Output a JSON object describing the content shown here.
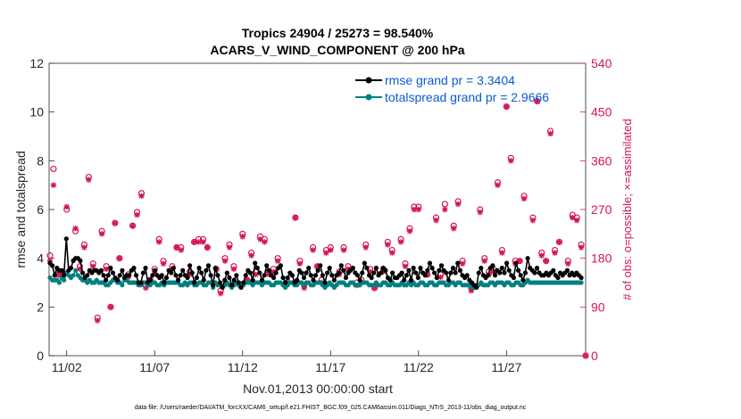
{
  "chart_data": {
    "type": "line",
    "title": "Tropics 24904 / 25273 = 98.540%",
    "subtitle": "ACARS_V_WIND_COMPONENT @ 200 hPa",
    "xlabel": "Nov.01,2013 00:00:00 start",
    "ylabel": "rmse and totalspread",
    "ylabel_right": "# of obs: o=possible; ×=assimilated",
    "footnote": "data file: /Users/raeder/DAI/ATM_forcXX/CAM6_setup/f.e21.FHIST_BGC.f09_025.CAM6assim.011/Diags_NTrS_2013-11/obs_diag_output.nc",
    "xlim": [
      0.5,
      31.0
    ],
    "ylim": [
      0,
      12
    ],
    "ylim_right": [
      0,
      540
    ],
    "x_ticks": [
      1.5,
      6.5,
      11.5,
      16.5,
      21.5,
      26.5
    ],
    "x_tick_labels": [
      "11/02",
      "11/07",
      "11/12",
      "11/17",
      "11/22",
      "11/27"
    ],
    "y_ticks": [
      0,
      2,
      4,
      6,
      8,
      10,
      12
    ],
    "y_tick_labels": [
      "0",
      "2",
      "4",
      "6",
      "8",
      "10",
      "12"
    ],
    "y_ticks_right": [
      0,
      90,
      180,
      270,
      360,
      450,
      540
    ],
    "y_tick_labels_right": [
      "0",
      "90",
      "180",
      "270",
      "360",
      "450",
      "540"
    ],
    "legend": {
      "placement": "top-right",
      "entries": [
        "rmse grand pr = 3.3404",
        "totalspread grand pr = 2.9666"
      ]
    },
    "colors": {
      "rmse": "#000000",
      "spread": "#008080",
      "obs": "#d4145a",
      "legend_text": "#0a5ad4"
    },
    "series": [
      {
        "name": "rmse",
        "marker": "filled-circle",
        "values": [
          3.8,
          3.7,
          3.3,
          3.6,
          3.5,
          3.5,
          3.3,
          4.8,
          3.5,
          3.6,
          3.9,
          4.0,
          4.0,
          3.9,
          3.4,
          3.2,
          3.3,
          3.5,
          3.4,
          3.5,
          3.5,
          3.4,
          3.5,
          3.3,
          3.1,
          3.3,
          3.6,
          3.4,
          3.2,
          3.1,
          3.3,
          3.5,
          3.2,
          3.3,
          3.3,
          3.5,
          3.6,
          3.3,
          3.0,
          3.0,
          3.4,
          3.6,
          3.0,
          3.1,
          3.3,
          3.5,
          3.3,
          3.2,
          3.3,
          3.0,
          3.2,
          3.5,
          3.4,
          3.6,
          3.3,
          3.1,
          3.3,
          3.5,
          3.3,
          3.2,
          3.7,
          3.4,
          3.0,
          3.2,
          3.6,
          3.4,
          3.1,
          3.5,
          3.7,
          3.3,
          2.9,
          3.6,
          3.3,
          3.0,
          2.8,
          3.1,
          3.4,
          3.2,
          2.9,
          3.1,
          3.3,
          3.0,
          2.8,
          3.0,
          3.3,
          3.5,
          3.4,
          3.1,
          3.8,
          3.6,
          3.4,
          3.1,
          3.3,
          3.7,
          3.5,
          3.3,
          3.2,
          3.4,
          3.6,
          3.7,
          3.2,
          3.0,
          3.2,
          3.4,
          3.3,
          3.0,
          3.1,
          3.5,
          3.4,
          3.2,
          3.4,
          3.6,
          3.3,
          3.1,
          3.3,
          3.5,
          3.7,
          3.3,
          3.0,
          3.4,
          3.6,
          3.3,
          3.1,
          3.3,
          3.4,
          3.7,
          3.5,
          3.2,
          3.4,
          3.5,
          3.6,
          3.4,
          3.3,
          3.1,
          3.4,
          3.8,
          3.6,
          3.3,
          3.2,
          3.4,
          3.6,
          3.3,
          3.4,
          3.6,
          3.5,
          3.2,
          3.1,
          3.4,
          3.2,
          3.2,
          3.3,
          3.4,
          3.1,
          3.3,
          3.5,
          3.1,
          3.6,
          3.4,
          3.2,
          3.6,
          3.4,
          3.3,
          3.5,
          3.8,
          3.6,
          3.4,
          3.2,
          3.5,
          3.7,
          3.5,
          3.4,
          3.1,
          3.4,
          3.6,
          3.4,
          3.8,
          3.5,
          3.3,
          3.2,
          3.3,
          3.1,
          3.0,
          2.9,
          2.8,
          3.4,
          3.6,
          3.3,
          3.2,
          3.3,
          3.6,
          3.7,
          3.3,
          3.5,
          3.4,
          3.6,
          3.4,
          3.8,
          3.5,
          3.3,
          3.2,
          3.8,
          3.5,
          3.3,
          3.1,
          3.4,
          4.0,
          3.6,
          3.5,
          3.4,
          3.6,
          3.4,
          3.3,
          3.3,
          3.4,
          3.3,
          3.4,
          3.5,
          3.3,
          3.2,
          3.4,
          3.3,
          3.4,
          3.5,
          3.3,
          3.4,
          3.3,
          3.4,
          3.3,
          3.2
        ]
      },
      {
        "name": "totalspread",
        "marker": "filled-circle",
        "values": [
          3.2,
          3.1,
          3.1,
          3.1,
          3.0,
          3.2,
          3.1,
          3.4,
          3.3,
          3.2,
          3.3,
          3.5,
          3.3,
          3.2,
          3.1,
          3.1,
          3.0,
          3.1,
          3.0,
          3.0,
          3.1,
          3.0,
          3.0,
          3.0,
          2.9,
          2.9,
          3.0,
          3.1,
          3.1,
          3.0,
          3.0,
          2.9,
          3.1,
          3.1,
          3.0,
          3.0,
          3.0,
          3.0,
          2.9,
          2.9,
          3.0,
          3.0,
          2.9,
          2.9,
          3.0,
          3.0,
          2.9,
          2.9,
          3.0,
          2.9,
          3.0,
          3.0,
          3.0,
          3.0,
          3.0,
          3.0,
          2.9,
          2.9,
          3.0,
          2.9,
          3.0,
          3.0,
          2.9,
          2.9,
          3.0,
          3.0,
          2.9,
          2.9,
          3.0,
          3.0,
          2.8,
          3.0,
          2.9,
          2.9,
          2.8,
          2.9,
          3.0,
          2.9,
          2.8,
          2.9,
          3.0,
          2.9,
          2.8,
          2.9,
          3.0,
          3.0,
          3.0,
          2.9,
          3.0,
          3.0,
          3.0,
          2.9,
          3.0,
          3.0,
          3.0,
          2.9,
          2.9,
          3.0,
          3.0,
          3.0,
          2.9,
          2.8,
          2.9,
          3.0,
          3.0,
          2.9,
          2.9,
          3.0,
          3.0,
          2.9,
          3.0,
          3.0,
          2.9,
          2.9,
          3.0,
          3.0,
          3.0,
          2.9,
          2.8,
          2.9,
          3.0,
          2.9,
          2.8,
          2.9,
          3.0,
          3.0,
          3.0,
          2.9,
          2.9,
          3.0,
          3.0,
          2.9,
          2.9,
          2.9,
          3.0,
          3.0,
          3.0,
          2.9,
          2.9,
          2.9,
          3.0,
          2.9,
          2.9,
          3.0,
          3.0,
          2.9,
          2.9,
          3.0,
          2.9,
          2.9,
          2.9,
          3.0,
          2.9,
          2.9,
          3.0,
          2.9,
          3.0,
          2.9,
          2.9,
          3.0,
          3.0,
          2.9,
          2.9,
          3.0,
          3.0,
          2.9,
          2.9,
          3.0,
          3.0,
          3.0,
          2.9,
          2.9,
          3.0,
          3.0,
          2.9,
          3.0,
          3.0,
          2.9,
          2.9,
          2.9,
          2.9,
          2.8,
          2.8,
          2.8,
          2.9,
          3.0,
          2.9,
          2.9,
          2.9,
          3.0,
          3.0,
          2.9,
          3.0,
          3.0,
          3.0,
          2.9,
          3.0,
          3.0,
          2.9,
          2.9,
          3.0,
          3.0,
          2.9,
          2.9,
          3.0,
          3.1,
          3.0,
          3.0,
          3.0,
          3.0,
          3.0,
          3.0,
          3.0,
          3.0,
          3.0,
          3.0,
          3.0,
          3.0,
          3.0,
          3.0,
          3.0,
          3.0,
          3.0,
          3.0,
          3.0,
          3.0,
          3.0,
          3.0,
          3.0
        ]
      },
      {
        "name": "obs_possible",
        "axis": "right",
        "marker": "open-circle",
        "x": [
          0.55,
          0.75,
          1.0,
          1.25,
          1.5,
          2.0,
          2.25,
          2.5,
          2.75,
          3.0,
          3.25,
          3.5,
          3.75,
          4.0,
          4.25,
          4.5,
          5.0,
          5.25,
          5.5,
          5.75,
          6.0,
          6.25,
          6.5,
          6.75,
          7.0,
          7.5,
          7.75,
          8.0,
          8.5,
          8.75,
          9.0,
          9.25,
          9.5,
          10.0,
          10.25,
          10.5,
          10.75,
          11.0,
          11.5,
          11.75,
          12.0,
          12.25,
          12.5,
          12.75,
          13.0,
          13.25,
          13.5,
          14.0,
          14.5,
          14.75,
          15.0,
          15.5,
          15.75,
          16.0,
          16.25,
          16.5,
          17.0,
          17.25,
          17.5,
          18.0,
          18.25,
          18.5,
          18.75,
          19.0,
          19.5,
          19.75,
          20.0,
          20.5,
          20.75,
          21.0,
          21.25,
          21.5,
          22.0,
          22.5,
          22.75,
          23.0,
          23.5,
          23.75,
          24.0,
          24.5,
          25.0,
          25.25,
          25.5,
          25.75,
          26.0,
          26.25,
          26.5,
          26.75,
          27.0,
          27.25,
          27.5,
          28.0,
          28.25,
          28.5,
          28.75,
          29.0,
          29.25,
          29.5,
          30.0,
          30.25,
          30.5,
          30.75,
          31.0
        ],
        "values": [
          185,
          345,
          150,
          155,
          270,
          230,
          165,
          205,
          330,
          170,
          70,
          230,
          165,
          90,
          245,
          180,
          150,
          240,
          265,
          300,
          130,
          140,
          160,
          215,
          175,
          165,
          200,
          200,
          155,
          210,
          215,
          215,
          200,
          160,
          120,
          180,
          205,
          165,
          225,
          140,
          190,
          155,
          220,
          215,
          155,
          160,
          180,
          140,
          255,
          175,
          130,
          200,
          165,
          140,
          195,
          200,
          155,
          200,
          165,
          135,
          140,
          205,
          160,
          125,
          160,
          210,
          195,
          215,
          170,
          235,
          275,
          275,
          150,
          255,
          150,
          280,
          240,
          285,
          175,
          125,
          270,
          180,
          155,
          160,
          320,
          195,
          460,
          365,
          175,
          175,
          295,
          255,
          470,
          190,
          175,
          415,
          195,
          210,
          175,
          260,
          255,
          205,
          0
        ]
      },
      {
        "name": "obs_assimilated",
        "axis": "right",
        "marker": "star",
        "x": [
          0.55,
          0.75,
          1.0,
          1.25,
          1.5,
          2.0,
          2.25,
          2.5,
          2.75,
          3.0,
          3.25,
          3.5,
          3.75,
          4.0,
          4.25,
          4.5,
          5.0,
          5.25,
          5.5,
          5.75,
          6.0,
          6.25,
          6.5,
          6.75,
          7.0,
          7.5,
          7.75,
          8.0,
          8.5,
          8.75,
          9.0,
          9.25,
          9.5,
          10.0,
          10.25,
          10.5,
          10.75,
          11.0,
          11.5,
          11.75,
          12.0,
          12.25,
          12.5,
          12.75,
          13.0,
          13.25,
          13.5,
          14.0,
          14.5,
          14.75,
          15.0,
          15.5,
          15.75,
          16.0,
          16.25,
          16.5,
          17.0,
          17.25,
          17.5,
          18.0,
          18.25,
          18.5,
          18.75,
          19.0,
          19.5,
          19.75,
          20.0,
          20.5,
          20.75,
          21.0,
          21.25,
          21.5,
          22.0,
          22.5,
          22.75,
          23.0,
          23.5,
          23.75,
          24.0,
          24.5,
          25.0,
          25.25,
          25.5,
          25.75,
          26.0,
          26.25,
          26.5,
          26.75,
          27.0,
          27.25,
          27.5,
          28.0,
          28.25,
          28.5,
          28.75,
          29.0,
          29.25,
          29.5,
          30.0,
          30.25,
          30.5,
          30.75,
          31.0
        ],
        "values": [
          175,
          315,
          150,
          150,
          275,
          235,
          160,
          200,
          325,
          165,
          65,
          225,
          160,
          90,
          245,
          180,
          145,
          240,
          260,
          295,
          125,
          140,
          155,
          210,
          170,
          160,
          200,
          195,
          150,
          210,
          210,
          210,
          200,
          160,
          115,
          175,
          200,
          160,
          220,
          140,
          185,
          150,
          215,
          210,
          150,
          155,
          175,
          135,
          255,
          170,
          125,
          195,
          165,
          135,
          190,
          195,
          150,
          195,
          160,
          130,
          135,
          200,
          155,
          125,
          155,
          205,
          190,
          210,
          165,
          230,
          270,
          270,
          150,
          250,
          145,
          270,
          235,
          280,
          170,
          120,
          265,
          175,
          150,
          155,
          315,
          190,
          460,
          360,
          170,
          175,
          290,
          250,
          470,
          185,
          175,
          410,
          190,
          210,
          170,
          255,
          250,
          200,
          0
        ]
      }
    ]
  }
}
